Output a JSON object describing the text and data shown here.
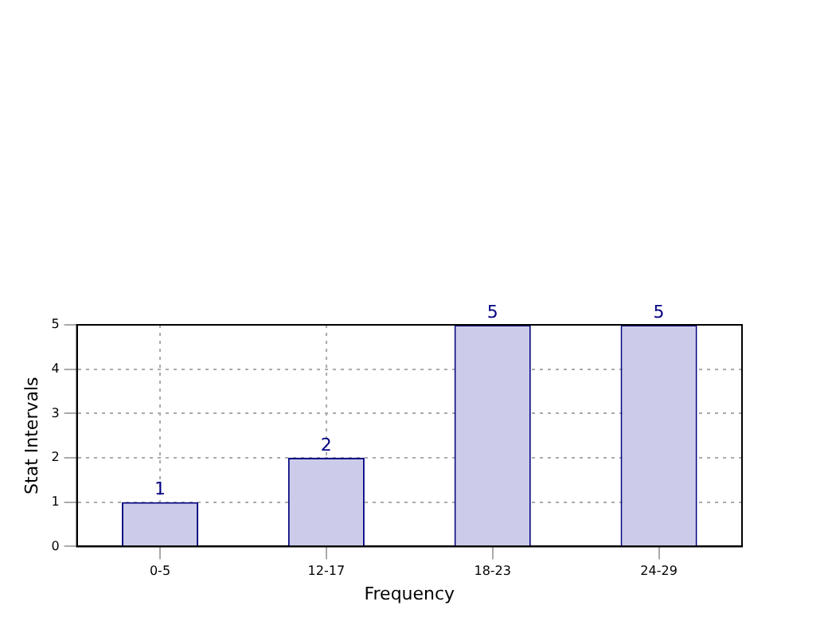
{
  "chart_data": {
    "type": "bar",
    "xlabel": "Frequency",
    "ylabel": "Stat Intervals",
    "categories": [
      "0-5",
      "12-17",
      "18-23",
      "24-29"
    ],
    "values": [
      1,
      2,
      5,
      5
    ],
    "color": "#ccccea",
    "ylim": [
      0,
      5
    ],
    "yticks": [
      0,
      1,
      2,
      3,
      4,
      5
    ],
    "grid": true,
    "data_labels": true
  }
}
